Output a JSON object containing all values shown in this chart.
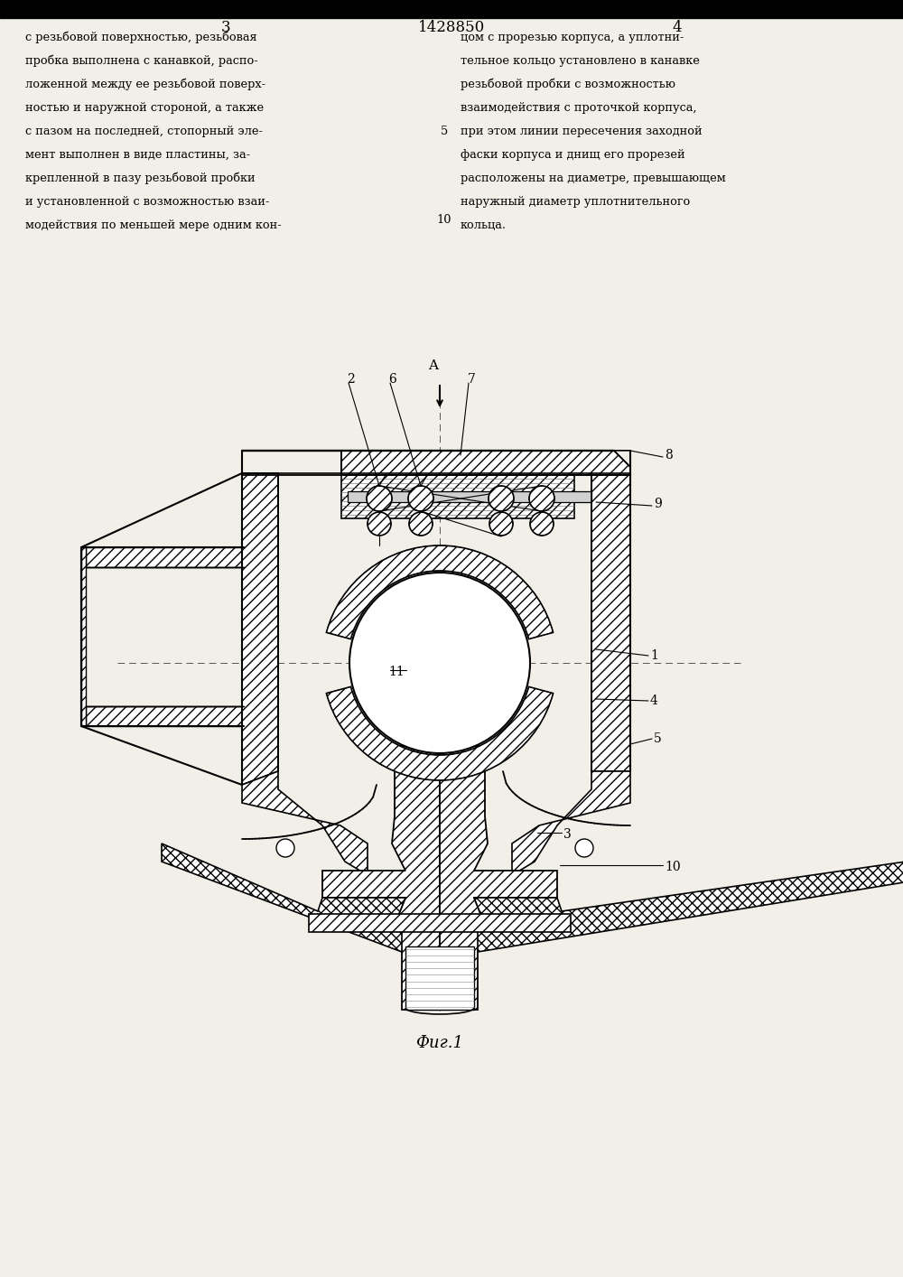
{
  "bg": "#f2efe8",
  "lc": "black",
  "title": "1428850",
  "pg_l": "3",
  "pg_r": "4",
  "fig_label": "Фиг.1",
  "body_left": [
    "с резьбовой поверхностью, резьбовая",
    "пробка выполнена с канавкой, распо-",
    "ложенной между ее резьбовой поверх-",
    "ностью и наружной стороной, а также",
    "с пазом на последней, стопорный эле-",
    "мент выполнен в виде пластины, за-",
    "крепленной в пазу резьбовой пробки",
    "и установленной с возможностью взаи-",
    "модействия по меньшей мере одним кон-"
  ],
  "body_right": [
    "цом с прорезью корпуса, а уплотни-",
    "тельное кольцо установлено в канавке",
    "резьбовой пробки с возможностью",
    "взаимодействия с проточкой корпуса,",
    "при этом линии пересечения заходной",
    "фаски корпуса и днищ его прорезей",
    "расположены на диаметре, превышающем",
    "наружный диаметр уплотнительного",
    "кольца."
  ]
}
